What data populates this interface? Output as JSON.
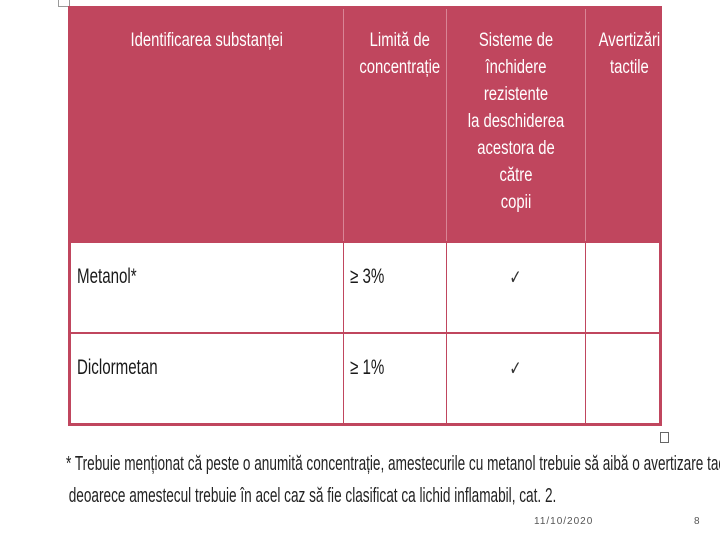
{
  "table": {
    "headers": [
      "Identificarea substanței",
      "Limită de\nconcentrație",
      "Sisteme de\nînchidere rezistente\nla deschiderea\nacestora de către\ncopii",
      "Avertizări\ntactile"
    ],
    "rows": [
      {
        "substance": "Metanol*",
        "limit": "≥ 3%",
        "closure": "✓",
        "tactile": ""
      },
      {
        "substance": "Diclormetan",
        "limit": "≥ 1%",
        "closure": "✓",
        "tactile": ""
      }
    ]
  },
  "footnote": {
    "line1": "* Trebuie menționat că peste o anumită concentrație, amestecurile cu metanol trebuie să aibă o avertizare tactilă,",
    "line2": "deoarece amestecul trebuie în acel caz să fie clasificat ca lichid inflamabil, cat. 2."
  },
  "footer": {
    "date": "11/10/2020",
    "page": "8"
  },
  "colors": {
    "header_bg": "#c0465e",
    "border": "#c0465e"
  }
}
